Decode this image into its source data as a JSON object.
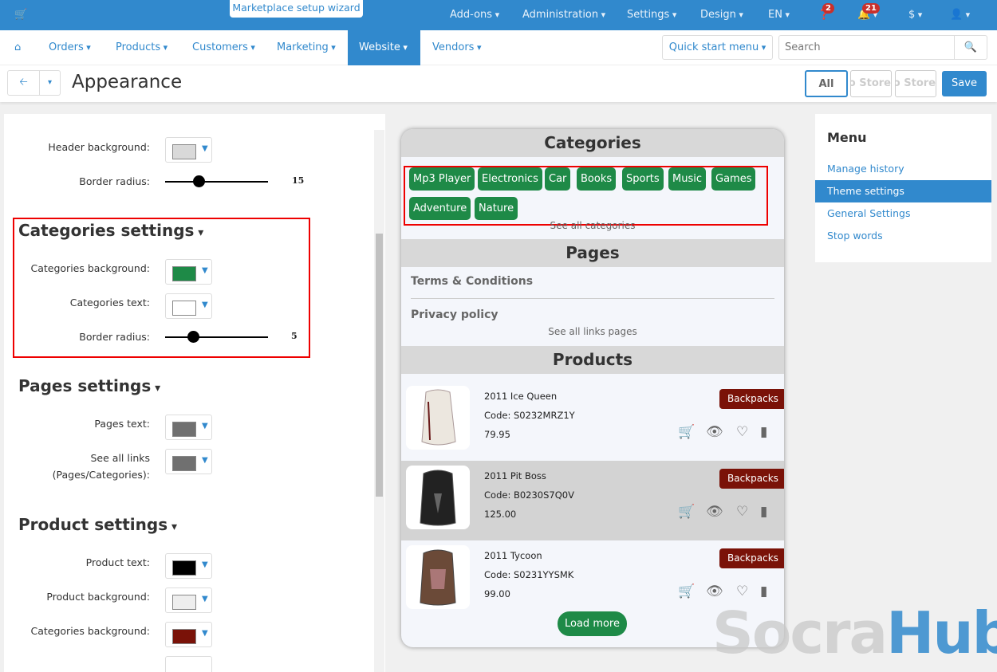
{
  "topbar": {
    "wizard": "Marketplace setup wizard",
    "items": [
      "Add-ons",
      "Administration",
      "Settings",
      "Design",
      "EN"
    ],
    "help_badge": "2",
    "notifications_badge": "21",
    "currency": "$"
  },
  "nav": {
    "items": [
      "Orders",
      "Products",
      "Customers",
      "Marketing",
      "Website",
      "Vendors"
    ],
    "active": "Website",
    "quick_start": "Quick start menu",
    "search_placeholder": "Search"
  },
  "titlebar": {
    "title": "Appearance",
    "stores": [
      "All",
      "Demo Store",
      "Demo Store"
    ],
    "save": "Save"
  },
  "settings": {
    "header_background_label": "Header background:",
    "header_background_color": "#d9d9d9",
    "header_radius_label": "Border radius:",
    "header_radius_value": "15",
    "categories": {
      "title": "Categories settings",
      "bg_label": "Categories background:",
      "bg_color": "#1e8a47",
      "text_label": "Categories text:",
      "text_color": "#ffffff",
      "radius_label": "Border radius:",
      "radius_value": "5"
    },
    "pages": {
      "title": "Pages settings",
      "text_label": "Pages text:",
      "text_color": "#707070",
      "links_label_1": "See all links",
      "links_label_2": "(Pages/Categories):",
      "links_color": "#707070"
    },
    "product": {
      "title": "Product settings",
      "text_label": "Product text:",
      "text_color": "#000000",
      "bg_label": "Product background:",
      "bg_color": "#eeeeee",
      "cat_bg_label": "Categories background:",
      "cat_bg_color": "#7a1208"
    }
  },
  "preview": {
    "categories_title": "Categories",
    "categories": [
      "Mp3 Player",
      "Electronics",
      "Car",
      "Books",
      "Sports",
      "Music",
      "Games",
      "Adventure",
      "Nature"
    ],
    "see_all_categories": "See all categories",
    "pages_title": "Pages",
    "pages": [
      "Terms & Conditions",
      "Privacy policy"
    ],
    "see_all_pages": "See all links pages",
    "products_title": "Products",
    "products": [
      {
        "name": "2011 Ice Queen",
        "code": "Code: S0232MRZ1Y",
        "price": "79.95",
        "category": "Backpacks"
      },
      {
        "name": "2011 Pit Boss",
        "code": "Code: B0230S7Q0V",
        "price": "125.00",
        "category": "Backpacks"
      },
      {
        "name": "2011 Tycoon",
        "code": "Code: S0231YYSMK",
        "price": "99.00",
        "category": "Backpacks"
      }
    ],
    "load_more": "Load more"
  },
  "menu": {
    "title": "Menu",
    "items": [
      "Manage history",
      "Theme settings",
      "General Settings",
      "Stop words"
    ],
    "active": "Theme settings"
  },
  "watermark": {
    "part1": "Socra",
    "part2": "Hub"
  }
}
